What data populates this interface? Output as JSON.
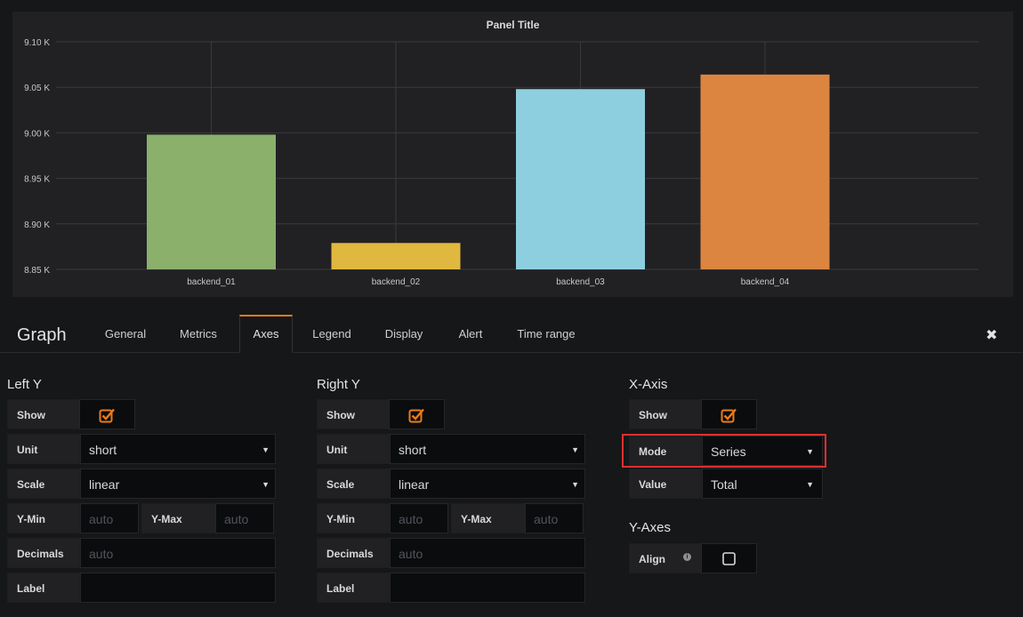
{
  "panel": {
    "title": "Panel Title"
  },
  "chart_data": {
    "type": "bar",
    "title": "Panel Title",
    "categories": [
      "backend_01",
      "backend_02",
      "backend_03",
      "backend_04"
    ],
    "values": [
      8998,
      8879,
      9048,
      9064
    ],
    "colors": [
      "#8ab06c",
      "#e0b83f",
      "#8ecfdf",
      "#dc8540"
    ],
    "yticks": [
      "9.10 K",
      "9.05 K",
      "9.00 K",
      "8.95 K",
      "8.90 K",
      "8.85 K"
    ],
    "ylim": [
      8850,
      9100
    ],
    "grid": true
  },
  "editor": {
    "title": "Graph",
    "tabs": [
      "General",
      "Metrics",
      "Axes",
      "Legend",
      "Display",
      "Alert",
      "Time range"
    ],
    "active_tab": "Axes"
  },
  "left_y": {
    "title": "Left Y",
    "show_label": "Show",
    "unit_label": "Unit",
    "unit_value": "short",
    "scale_label": "Scale",
    "scale_value": "linear",
    "ymin_label": "Y-Min",
    "ymin_placeholder": "auto",
    "ymax_label": "Y-Max",
    "ymax_placeholder": "auto",
    "decimals_label": "Decimals",
    "decimals_placeholder": "auto",
    "label_label": "Label"
  },
  "right_y": {
    "title": "Right Y",
    "show_label": "Show",
    "unit_label": "Unit",
    "unit_value": "short",
    "scale_label": "Scale",
    "scale_value": "linear",
    "ymin_label": "Y-Min",
    "ymin_placeholder": "auto",
    "ymax_label": "Y-Max",
    "ymax_placeholder": "auto",
    "decimals_label": "Decimals",
    "decimals_placeholder": "auto",
    "label_label": "Label"
  },
  "x_axis": {
    "title": "X-Axis",
    "show_label": "Show",
    "mode_label": "Mode",
    "mode_value": "Series",
    "value_label": "Value",
    "value_value": "Total"
  },
  "y_axes": {
    "title": "Y-Axes",
    "align_label": "Align"
  },
  "icons": {
    "checkbox_checked": "checkbox-checked-icon",
    "close": "close-icon",
    "info": "info-icon",
    "caret": "caret-down-icon"
  },
  "colors": {
    "accent": "#eb7b18",
    "highlight": "#e02f2f"
  }
}
